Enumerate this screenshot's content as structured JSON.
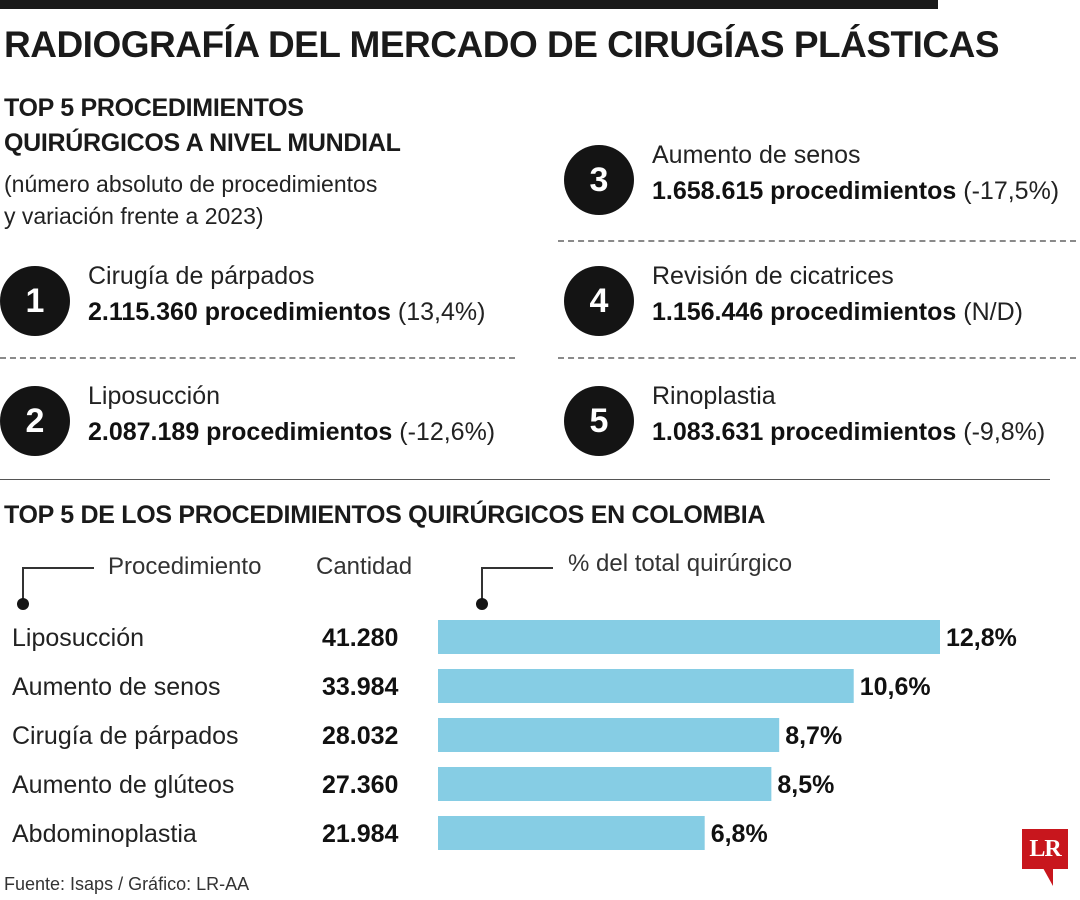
{
  "title": "RADIOGRAFÍA DEL MERCADO DE CIRUGÍAS PLÁSTICAS",
  "world": {
    "subtitle_line1": "TOP 5 PROCEDIMIENTOS",
    "subtitle_line2": "QUIRÚRGICOS A NIVEL MUNDIAL",
    "note_line1": "(número absoluto de procedimientos",
    "note_line2": "y variación frente a 2023)",
    "items": [
      {
        "rank": "1",
        "name": "Cirugía de párpados",
        "value": "2.115.360 procedimientos",
        "change": "(13,4%)"
      },
      {
        "rank": "2",
        "name": "Liposucción",
        "value": "2.087.189 procedimientos",
        "change": "(-12,6%)"
      },
      {
        "rank": "3",
        "name": "Aumento de senos",
        "value": "1.658.615 procedimientos",
        "change": "(-17,5%)"
      },
      {
        "rank": "4",
        "name": "Revisión de cicatrices",
        "value": "1.156.446 procedimientos",
        "change": "(N/D)"
      },
      {
        "rank": "5",
        "name": "Rinoplastia",
        "value": "1.083.631 procedimientos",
        "change": "(-9,8%)"
      }
    ]
  },
  "colombia": {
    "title": "TOP 5 DE LOS PROCEDIMIENTOS QUIRÚRGICOS EN COLOMBIA",
    "header_procedure": "Procedimiento",
    "header_quantity": "Cantidad",
    "header_percent": "% del total quirúrgico"
  },
  "chart_data": {
    "type": "bar",
    "orientation": "horizontal",
    "categories": [
      "Liposucción",
      "Aumento de senos",
      "Cirugía de párpados",
      "Aumento de glúteos",
      "Abdominoplastia"
    ],
    "quantities": [
      "41.280",
      "33.984",
      "28.032",
      "27.360",
      "21.984"
    ],
    "values": [
      12.8,
      10.6,
      8.7,
      8.5,
      6.8
    ],
    "value_labels": [
      "12,8%",
      "10,6%",
      "8,7%",
      "8,5%",
      "6,8%"
    ],
    "xlim": [
      0,
      12.8
    ],
    "bar_color": "#86cde4",
    "grid": false
  },
  "source": "Fuente: Isaps / Gráfico: LR-AA",
  "logo_text": "LR",
  "colors": {
    "accent": "#c8161d",
    "bar": "#86cde4",
    "circle": "#141414"
  }
}
